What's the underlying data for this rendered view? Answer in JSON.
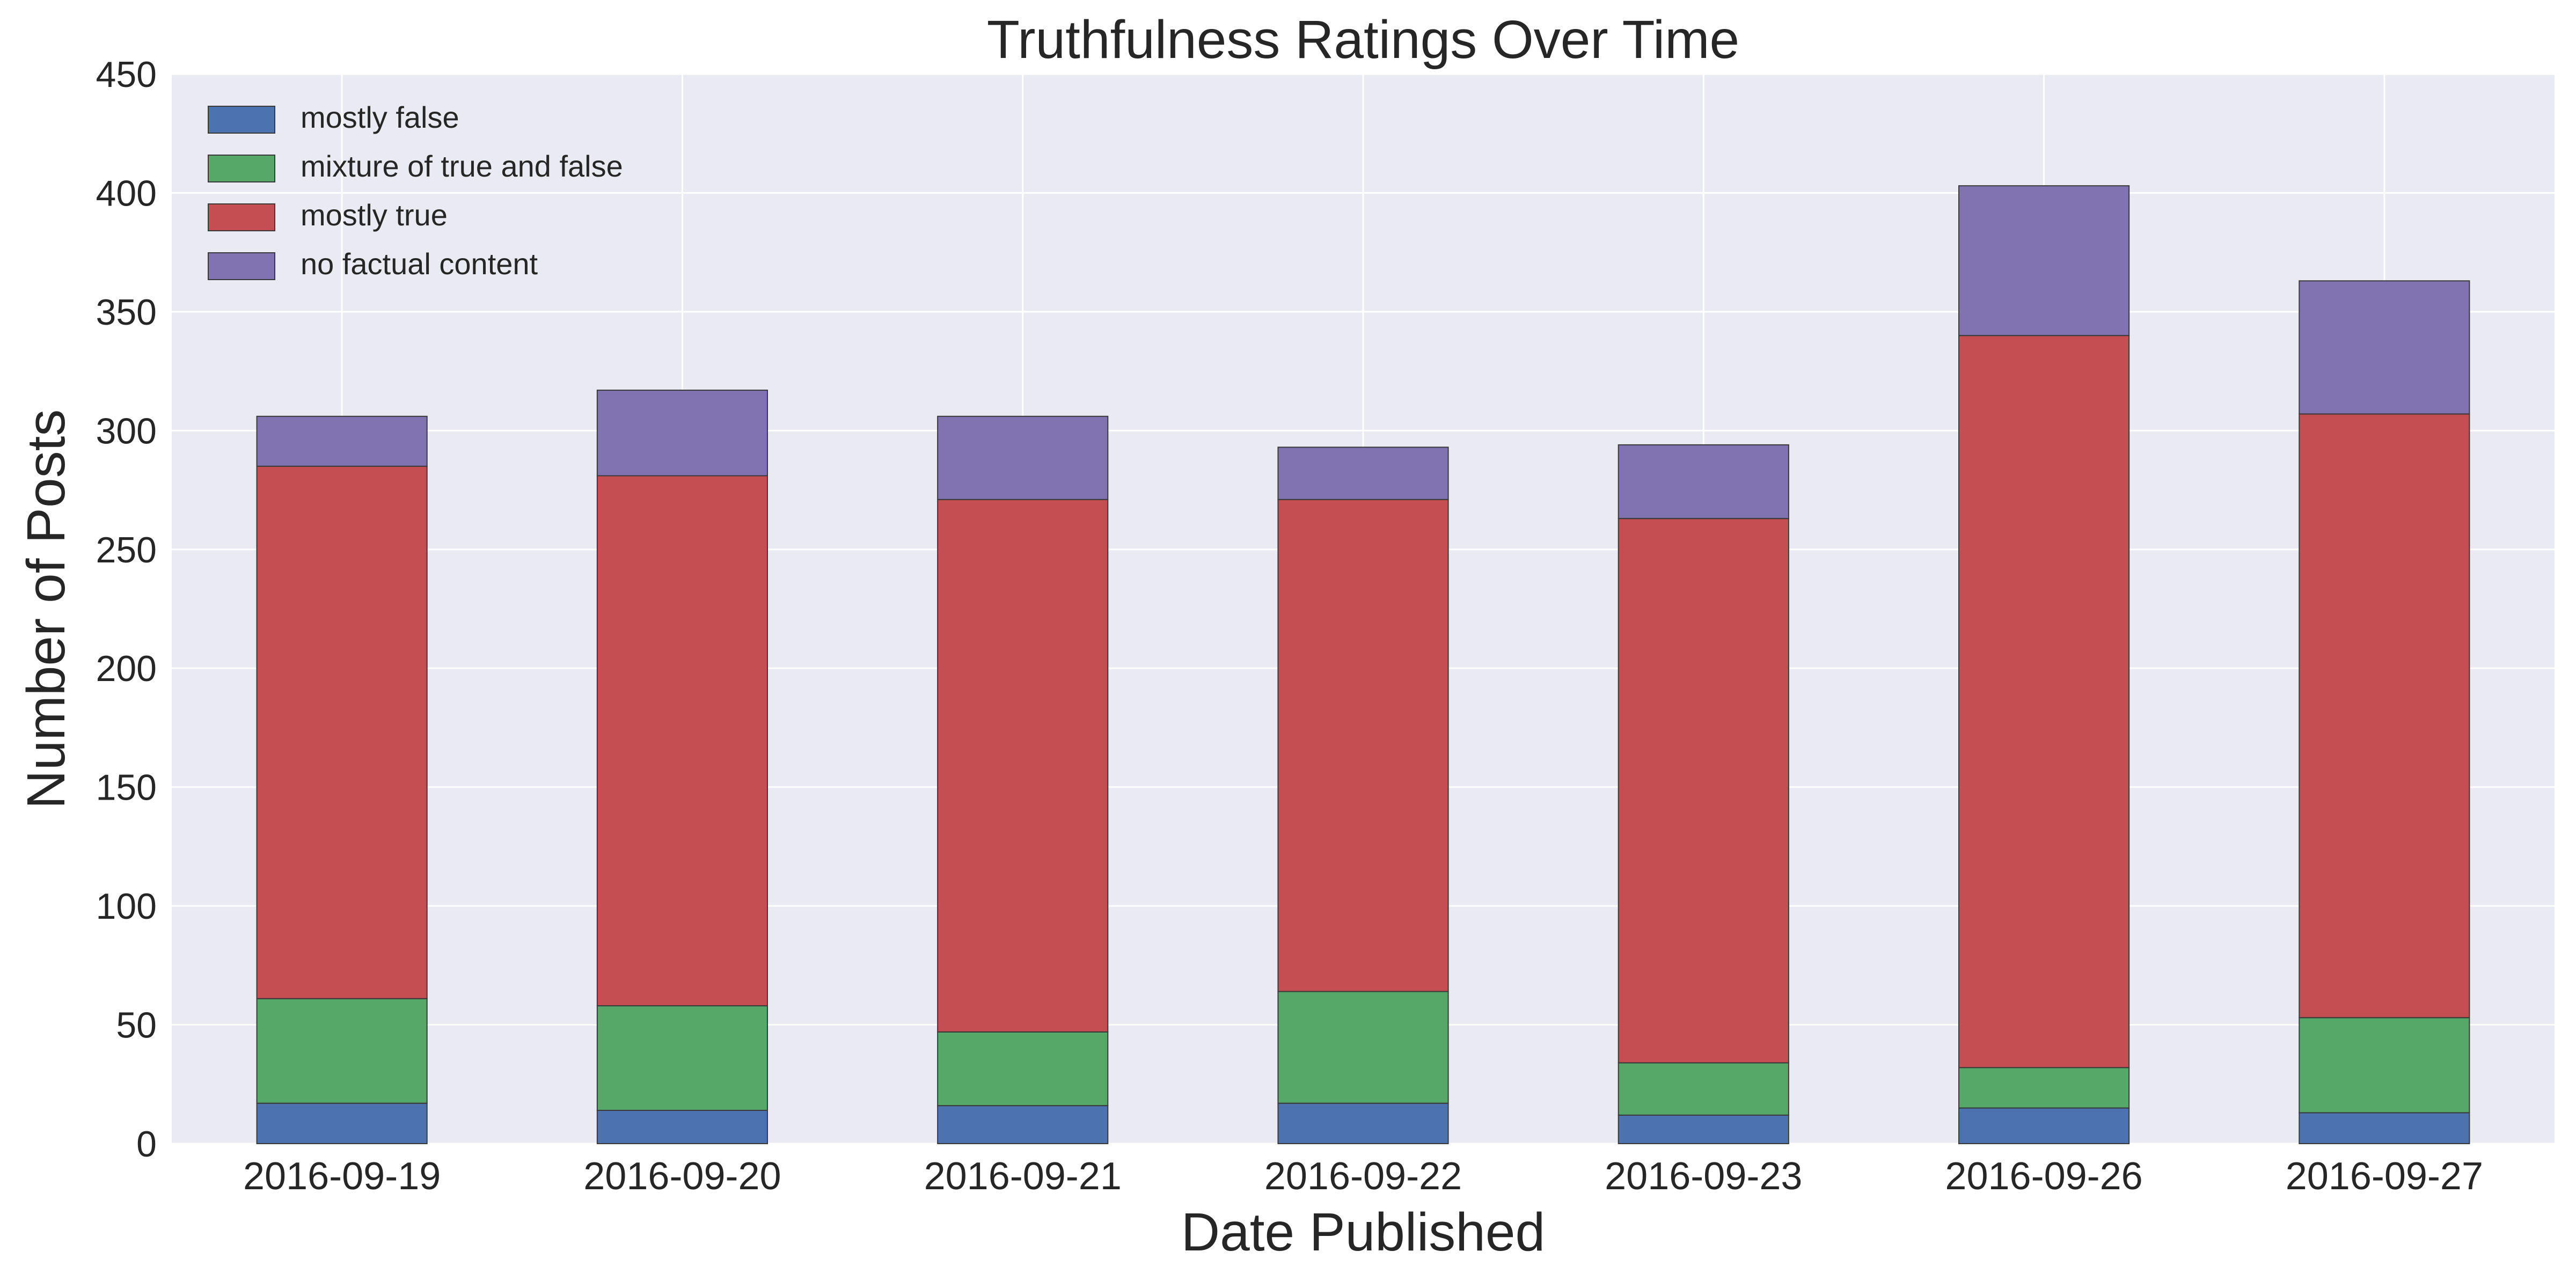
{
  "chart_data": {
    "type": "bar",
    "stacked": true,
    "title": "Truthfulness Ratings Over Time",
    "xlabel": "Date Published",
    "ylabel": "Number of Posts",
    "ylim": [
      0,
      450
    ],
    "yticks": [
      0,
      50,
      100,
      150,
      200,
      250,
      300,
      350,
      400,
      450
    ],
    "grid": true,
    "legend_position": "upper-left",
    "categories": [
      "2016-09-19",
      "2016-09-20",
      "2016-09-21",
      "2016-09-22",
      "2016-09-23",
      "2016-09-26",
      "2016-09-27"
    ],
    "series": [
      {
        "name": "mostly false",
        "color": "#4C72B0",
        "values": [
          17,
          14,
          16,
          17,
          12,
          15,
          13
        ]
      },
      {
        "name": "mixture of true and false",
        "color": "#55A868",
        "values": [
          44,
          44,
          31,
          47,
          22,
          17,
          40
        ]
      },
      {
        "name": "mostly true",
        "color": "#C44E52",
        "values": [
          224,
          223,
          224,
          207,
          229,
          308,
          254
        ]
      },
      {
        "name": "no factual content",
        "color": "#8172B2",
        "values": [
          21,
          36,
          35,
          22,
          31,
          63,
          56
        ]
      }
    ],
    "background_color": "#EAEAF2",
    "grid_color": "#FFFFFF"
  }
}
